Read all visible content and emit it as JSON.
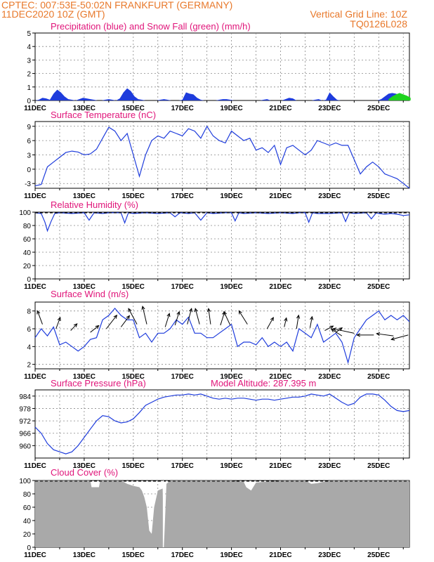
{
  "header": {
    "line1_left": "CPTEC:   007:53E-50:02N   FRANKFURT (GERMANY)",
    "line2_left": "11DEC2020 10Z (GMT)",
    "line2_right": "Vertical Grid Line: 10Z",
    "line3_right": "TQ0126L028"
  },
  "colors": {
    "line": "#1e3cdc",
    "rain": "#1e3cdc",
    "snow": "#1ed21e",
    "cloud": "#a9a9a9",
    "title": "#e0157a",
    "header": "#e8782a"
  },
  "chart_data": [
    {
      "id": "precip",
      "type": "area",
      "title": "Precipitation (blue) and Snow Fall (green) (mm/h)",
      "ylim": [
        0,
        5
      ],
      "yticks": [
        "0",
        "1",
        "2",
        "3",
        "4",
        "5"
      ],
      "xticks": [
        "11DEC",
        "13DEC",
        "15DEC",
        "17DEC",
        "19DEC",
        "21DEC",
        "23DEC",
        "25DEC"
      ],
      "series": [
        {
          "name": "Precipitation",
          "x": [
            0,
            0.3,
            0.6,
            0.9,
            1.2,
            1.5,
            1.8,
            2.1,
            2.4,
            2.7,
            3.0,
            3.3,
            3.6,
            3.9,
            4.2,
            4.5,
            4.8,
            5.1,
            5.4,
            5.7,
            6.0,
            6.3,
            6.6,
            6.9,
            7.2,
            7.5,
            7.8,
            8.1,
            8.4,
            8.7,
            9.0,
            9.3,
            9.6,
            9.9,
            10.2,
            10.5,
            10.8,
            11.1,
            11.4,
            11.7,
            12.0,
            12.3,
            12.6,
            12.9,
            13.2,
            13.5,
            13.8,
            14.1,
            14.4,
            14.7,
            15.0,
            15.3,
            15.6,
            15.9,
            16.2,
            16.5,
            16.8,
            17.1,
            17.4,
            17.7,
            18.0,
            18.3,
            18.6,
            18.9,
            19.2,
            19.5,
            19.8,
            20.1,
            20.4,
            20.7,
            21.0,
            21.3,
            21.6,
            21.9,
            22.2,
            22.5,
            22.8,
            23.1,
            23.4,
            23.7,
            24.0,
            24.3,
            24.6,
            24.9,
            25.2,
            25.5,
            25.8,
            26.1,
            26.4,
            26.7,
            27.0,
            27.3,
            27.6,
            27.9,
            28.2,
            28.5,
            28.8,
            29.1,
            29.4,
            29.7,
            30.0,
            30.3
          ],
          "values": [
            0,
            0.05,
            0.2,
            0.15,
            0.05,
            0.5,
            0.8,
            0.6,
            0.3,
            0.1,
            0.05,
            0,
            0.1,
            0.2,
            0.15,
            0.1,
            0.05,
            0,
            0,
            0.05,
            0.1,
            0.05,
            0,
            0.15,
            0.6,
            0.9,
            0.7,
            0.3,
            0.1,
            0.05,
            0,
            0,
            0,
            0,
            0.05,
            0.1,
            0.05,
            0,
            0,
            0,
            0.05,
            0.6,
            0.5,
            0.45,
            0.2,
            0.05,
            0,
            0,
            0,
            0,
            0.05,
            0.1,
            0.1,
            0.05,
            0,
            0,
            0,
            0,
            0,
            0,
            0,
            0,
            0.05,
            0.1,
            0,
            0,
            0,
            0,
            0.1,
            0.2,
            0.15,
            0,
            0,
            0,
            0,
            0,
            0.05,
            0.1,
            0,
            0.05,
            0.6,
            0.3,
            0.05,
            0,
            0,
            0,
            0,
            0,
            0,
            0,
            0,
            0,
            0,
            0,
            0.1,
            0.3,
            0.5,
            0.55,
            0.5,
            0.4,
            0.2,
            0.05
          ]
        },
        {
          "name": "Snow Fall",
          "x": [
            28.8,
            29.1,
            29.4,
            29.7,
            30.0,
            30.3,
            30.6
          ],
          "values": [
            0.1,
            0.3,
            0.45,
            0.55,
            0.45,
            0.35,
            0.2
          ]
        }
      ]
    },
    {
      "id": "temp",
      "type": "line",
      "title": "Surface Temperature (nC)",
      "ylim": [
        -4,
        10
      ],
      "yticks": [
        "-3",
        "0",
        "3",
        "6",
        "9"
      ],
      "xticks": [
        "11DEC",
        "13DEC",
        "15DEC",
        "17DEC",
        "19DEC",
        "21DEC",
        "23DEC",
        "25DEC"
      ],
      "series": [
        {
          "x": [
            0,
            0.5,
            1.0,
            1.5,
            2.0,
            2.5,
            3.0,
            3.5,
            4.0,
            4.5,
            5.0,
            5.5,
            6.0,
            6.5,
            7.0,
            7.5,
            8.0,
            8.5,
            9.0,
            9.5,
            10.0,
            10.5,
            11.0,
            11.5,
            12.0,
            12.5,
            13.0,
            13.5,
            14.0,
            14.5,
            15.0,
            15.5,
            16.0,
            16.5,
            17.0,
            17.5,
            18.0,
            18.5,
            19.0,
            19.5,
            20.0,
            20.5,
            21.0,
            21.5,
            22.0,
            22.5,
            23.0,
            23.5,
            24.0,
            24.5,
            25.0,
            25.5,
            26.0,
            26.5,
            27.0,
            27.5,
            28.0,
            28.5,
            29.0,
            29.5,
            30.0,
            30.5
          ],
          "values": [
            -3.5,
            -3.2,
            0.5,
            1.5,
            2.5,
            3.5,
            3.8,
            3.6,
            3.0,
            3.2,
            4.2,
            6.5,
            8.8,
            8.0,
            6.0,
            7.5,
            3.0,
            -1.5,
            3.0,
            6.0,
            7.0,
            6.5,
            8.0,
            7.5,
            7.0,
            8.5,
            8.0,
            6.5,
            9.0,
            7.0,
            6.0,
            5.5,
            8.0,
            7.0,
            6.0,
            6.5,
            4.0,
            4.5,
            3.5,
            5.0,
            1.0,
            4.5,
            5.0,
            4.0,
            3.0,
            4.0,
            6.0,
            5.5,
            5.0,
            5.5,
            5.0,
            5.0,
            2.0,
            -1.0,
            0.5,
            1.5,
            0.5,
            -1.0,
            -1.5,
            -2.0,
            -3.0,
            -4.0
          ]
        }
      ]
    },
    {
      "id": "rh",
      "type": "line",
      "title": "Relative Humidity (%)",
      "ylim": [
        0,
        100
      ],
      "yticks": [
        "0",
        "20",
        "40",
        "60",
        "80",
        "100"
      ],
      "xticks": [
        "11DEC",
        "13DEC",
        "15DEC",
        "17DEC",
        "19DEC",
        "21DEC",
        "23DEC",
        "25DEC"
      ],
      "series": [
        {
          "x": [
            0,
            0.5,
            0.8,
            1.0,
            1.3,
            1.6,
            2.0,
            3.0,
            4.0,
            4.4,
            4.8,
            5.5,
            6.0,
            7.0,
            7.3,
            7.6,
            8.0,
            9.0,
            10.0,
            11.0,
            11.4,
            11.8,
            12.5,
            13.0,
            13.5,
            14.0,
            14.5,
            15.5,
            16.0,
            16.3,
            16.6,
            17.0,
            18.0,
            19.0,
            20.0,
            21.0,
            21.5,
            22.0,
            22.3,
            22.6,
            23.0,
            24.0,
            25.0,
            25.3,
            25.6,
            26.0,
            27.0,
            27.4,
            27.8,
            28.0,
            28.5,
            29.0,
            29.5,
            30.0,
            30.5
          ],
          "values": [
            99,
            98,
            85,
            72,
            86,
            98,
            99,
            98,
            99,
            88,
            99,
            98,
            99,
            99,
            84,
            99,
            98,
            99,
            98,
            99,
            93,
            99,
            98,
            99,
            88,
            99,
            98,
            99,
            99,
            87,
            99,
            98,
            99,
            98,
            99,
            98,
            99,
            99,
            85,
            99,
            98,
            98,
            99,
            86,
            99,
            98,
            99,
            90,
            99,
            98,
            97,
            98,
            97,
            95,
            96
          ]
        }
      ]
    },
    {
      "id": "wind",
      "type": "line",
      "title": "Surface Wind (m/s)",
      "ylim": [
        1.5,
        9
      ],
      "yticks": [
        "2",
        "4",
        "6",
        "8"
      ],
      "xticks": [
        "11DEC",
        "13DEC",
        "15DEC",
        "17DEC",
        "19DEC",
        "21DEC",
        "23DEC",
        "25DEC"
      ],
      "series": [
        {
          "x": [
            0,
            0.5,
            1.0,
            1.5,
            2.0,
            2.5,
            3.0,
            3.5,
            4.0,
            4.5,
            5.0,
            5.5,
            6.0,
            6.5,
            7.0,
            7.5,
            8.0,
            8.5,
            9.0,
            9.5,
            10.0,
            10.5,
            11.0,
            11.5,
            12.0,
            12.5,
            13.0,
            13.5,
            14.0,
            14.5,
            15.0,
            15.5,
            16.0,
            16.5,
            17.0,
            17.5,
            18.0,
            18.5,
            19.0,
            19.5,
            20.0,
            20.5,
            21.0,
            21.5,
            22.0,
            22.5,
            23.0,
            23.5,
            24.0,
            24.5,
            25.0,
            25.5,
            26.0,
            26.5,
            27.0,
            27.5,
            28.0,
            28.5,
            29.0,
            29.5,
            30.0,
            30.5
          ],
          "values": [
            5.0,
            6.0,
            5.2,
            6.2,
            4.2,
            4.5,
            4.0,
            3.5,
            4.0,
            4.8,
            5.0,
            7.0,
            7.5,
            8.3,
            7.5,
            7.0,
            7.0,
            5.0,
            5.5,
            4.5,
            5.5,
            5.5,
            6.0,
            7.0,
            6.5,
            7.3,
            5.5,
            5.5,
            5.0,
            5.0,
            5.5,
            6.0,
            6.5,
            4.0,
            4.5,
            4.5,
            4.2,
            5.0,
            4.0,
            4.5,
            4.0,
            4.5,
            3.5,
            6.0,
            5.5,
            5.0,
            6.5,
            4.5,
            5.0,
            5.5,
            4.5,
            2.2,
            5.0,
            6.0,
            7.0,
            7.5,
            8.0,
            7.0,
            7.5,
            7.0,
            7.5,
            6.8
          ]
        }
      ]
    },
    {
      "id": "pressure",
      "type": "line",
      "title": "Surface Pressure (hPa)",
      "annotation": "Model Altitude: 287.395 m",
      "ylim": [
        954,
        987
      ],
      "yticks": [
        "960",
        "966",
        "972",
        "978",
        "984"
      ],
      "xticks": [
        "11DEC",
        "13DEC",
        "15DEC",
        "17DEC",
        "19DEC",
        "21DEC",
        "23DEC",
        "25DEC"
      ],
      "series": [
        {
          "x": [
            0,
            0.5,
            1.0,
            1.5,
            2.0,
            2.5,
            3.0,
            3.5,
            4.0,
            4.5,
            5.0,
            5.5,
            6.0,
            6.5,
            7.0,
            7.5,
            8.0,
            8.5,
            9.0,
            9.5,
            10.0,
            10.5,
            11.0,
            11.5,
            12.0,
            12.5,
            13.0,
            13.5,
            14.0,
            14.5,
            15.0,
            15.5,
            16.0,
            16.5,
            17.0,
            17.5,
            18.0,
            18.5,
            19.0,
            19.5,
            20.0,
            20.5,
            21.0,
            21.5,
            22.0,
            22.5,
            23.0,
            23.5,
            24.0,
            24.5,
            25.0,
            25.5,
            26.0,
            26.5,
            27.0,
            27.5,
            28.0,
            28.5,
            29.0,
            29.5,
            30.0,
            30.5
          ],
          "values": [
            969,
            966,
            961,
            958,
            957,
            956,
            957,
            960,
            964,
            968,
            972,
            974.5,
            974,
            972,
            971,
            971.5,
            973,
            976,
            979.5,
            981,
            982.5,
            983.5,
            984,
            984.5,
            984.5,
            985,
            984.5,
            985,
            984,
            983,
            982.5,
            983,
            982.5,
            983,
            983,
            982.5,
            982,
            982.5,
            982.5,
            982,
            982.5,
            983,
            983.5,
            983.5,
            984,
            985,
            984.5,
            984,
            985,
            983,
            981,
            979.5,
            980.5,
            983.5,
            985,
            985,
            984.5,
            982,
            979,
            977,
            976.5,
            977
          ]
        }
      ]
    },
    {
      "id": "cloud",
      "type": "area",
      "title": "Cloud Cover (%)",
      "ylim": [
        0,
        100
      ],
      "yticks": [
        "0",
        "20",
        "40",
        "60",
        "80",
        "100"
      ],
      "xticks": [
        "11DEC",
        "13DEC",
        "15DEC",
        "17DEC",
        "19DEC",
        "21DEC",
        "23DEC",
        "25DEC"
      ],
      "series": [
        {
          "x": [
            0,
            4.5,
            4.6,
            5.2,
            5.3,
            6.0,
            7.0,
            7.5,
            8.0,
            8.5,
            8.7,
            8.9,
            9.1,
            9.3,
            9.5,
            9.7,
            10.0,
            10.4,
            10.5,
            10.7,
            11.0,
            12.0,
            14.0,
            16.0,
            17.0,
            17.2,
            17.6,
            18.0,
            20.0,
            22.0,
            22.5,
            23.0,
            24.0,
            28.0,
            29.0,
            30.5
          ],
          "values": [
            100,
            100,
            90,
            90,
            100,
            100,
            100,
            95,
            92,
            90,
            85,
            75,
            60,
            25,
            20,
            60,
            85,
            88,
            2,
            95,
            100,
            100,
            100,
            100,
            98,
            90,
            85,
            97,
            100,
            100,
            95,
            96,
            100,
            100,
            100,
            100
          ]
        }
      ]
    }
  ]
}
